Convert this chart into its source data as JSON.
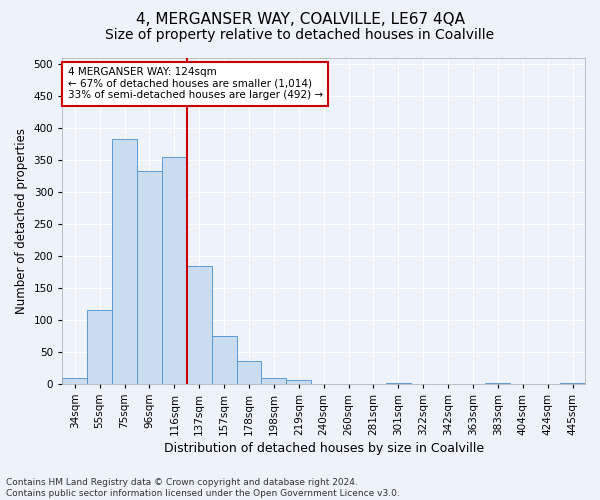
{
  "title": "4, MERGANSER WAY, COALVILLE, LE67 4QA",
  "subtitle": "Size of property relative to detached houses in Coalville",
  "xlabel": "Distribution of detached houses by size in Coalville",
  "ylabel": "Number of detached properties",
  "categories": [
    "34sqm",
    "55sqm",
    "75sqm",
    "96sqm",
    "116sqm",
    "137sqm",
    "157sqm",
    "178sqm",
    "198sqm",
    "219sqm",
    "240sqm",
    "260sqm",
    "281sqm",
    "301sqm",
    "322sqm",
    "342sqm",
    "363sqm",
    "383sqm",
    "404sqm",
    "424sqm",
    "445sqm"
  ],
  "values": [
    10,
    115,
    383,
    333,
    354,
    185,
    75,
    36,
    10,
    6,
    0,
    0,
    0,
    2,
    0,
    0,
    0,
    2,
    0,
    0,
    2
  ],
  "bar_color": "#c9dcf0",
  "bar_edge_color": "#5b9bd5",
  "vline_index": 4.5,
  "vline_color": "#cc0000",
  "annotation_text": "4 MERGANSER WAY: 124sqm\n← 67% of detached houses are smaller (1,014)\n33% of semi-detached houses are larger (492) →",
  "annotation_box_color": "#ffffff",
  "annotation_box_edge": "#cc0000",
  "ylim": [
    0,
    510
  ],
  "yticks": [
    0,
    50,
    100,
    150,
    200,
    250,
    300,
    350,
    400,
    450,
    500
  ],
  "footer": "Contains HM Land Registry data © Crown copyright and database right 2024.\nContains public sector information licensed under the Open Government Licence v3.0.",
  "title_fontsize": 11,
  "subtitle_fontsize": 10,
  "xlabel_fontsize": 9,
  "ylabel_fontsize": 8.5,
  "tick_fontsize": 7.5,
  "annotation_fontsize": 7.5,
  "footer_fontsize": 6.5,
  "background_color": "#eef2fa"
}
